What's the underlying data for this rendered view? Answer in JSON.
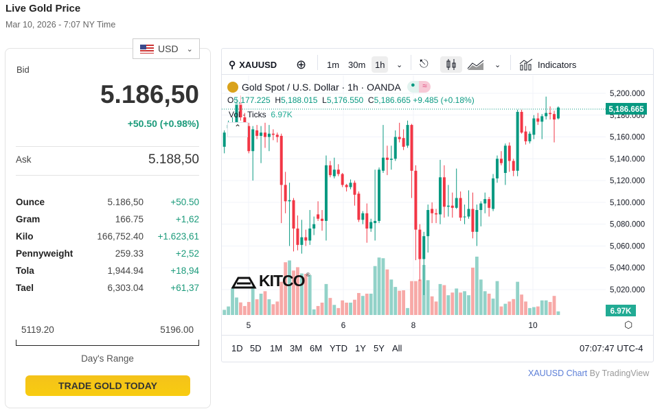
{
  "header": {
    "title": "Live Gold Price",
    "subtitle": "Mar 10, 2026 - 7:07 NY Time"
  },
  "currency": {
    "selected": "USD"
  },
  "quote": {
    "bid_label": "Bid",
    "bid": "5.186,50",
    "change": "+50.50 (+0.98%)",
    "ask_label": "Ask",
    "ask": "5.188,50"
  },
  "units": [
    {
      "name": "Ounce",
      "price": "5.186,50",
      "change": "+50.50"
    },
    {
      "name": "Gram",
      "price": "166.75",
      "change": "+1,62"
    },
    {
      "name": "Kilo",
      "price": "166,752.40",
      "change": "+1.623,61"
    },
    {
      "name": "Pennyweight",
      "price": "259.33",
      "change": "+2,52"
    },
    {
      "name": "Tola",
      "price": "1,944.94",
      "change": "+18,94"
    },
    {
      "name": "Tael",
      "price": "6,303.04",
      "change": "+61,37"
    }
  ],
  "range": {
    "low": "5119.20",
    "high": "5196.00",
    "label": "Day's Range"
  },
  "cta": "TRADE GOLD TODAY",
  "toolbar": {
    "symbol": "XAUUSD",
    "intervals": [
      "1m",
      "30m",
      "1h"
    ],
    "active_interval": "1h",
    "indicators": "Indicators"
  },
  "legend": {
    "title": "Gold Spot / U.S. Dollar · 1h · OANDA",
    "o": "5,177.225",
    "h": "5,188.015",
    "l": "5,176.550",
    "c": "5,186.665",
    "chg": "+9.485 (+0.18%)",
    "vol_label": "Vol · Ticks",
    "vol_value": "6.97K"
  },
  "ranges": [
    "1D",
    "5D",
    "1M",
    "3M",
    "6M",
    "YTD",
    "1Y",
    "5Y",
    "All"
  ],
  "clock": "07:07:47 UTC-4",
  "attribution": {
    "link": "XAUUSD Chart",
    "by": "By TradingView"
  },
  "logo": "KITCO",
  "colors": {
    "up": "#089981",
    "down": "#f23645",
    "up_vol": "#92d2c8",
    "down_vol": "#f7a9a7",
    "accent": "#1a9a7a"
  },
  "chart_data": {
    "type": "candlestick",
    "price_ticks": [
      "5,200.000",
      "5,180.000",
      "5,160.000",
      "5,140.000",
      "5,120.000",
      "5,100.000",
      "5,080.000",
      "5,060.000",
      "5,040.000",
      "5,020.000"
    ],
    "price_tick_values": [
      5200,
      5180,
      5160,
      5140,
      5120,
      5100,
      5080,
      5060,
      5040,
      5020
    ],
    "date_ticks": [
      "5",
      "6",
      "8",
      "10"
    ],
    "last_price": "5,186.665",
    "last_volume": "6.97K",
    "ylim": [
      5010,
      5210
    ],
    "ohlc": [
      [
        5151,
        5166,
        5145,
        5164
      ],
      [
        5168,
        5175,
        5163,
        5171
      ],
      [
        5169,
        5178,
        5166,
        5172
      ],
      [
        5171,
        5196,
        5168,
        5191
      ],
      [
        5191,
        5198,
        5175,
        5178
      ],
      [
        5178,
        5182,
        5168,
        5171
      ],
      [
        5170,
        5173,
        5145,
        5147
      ],
      [
        5147,
        5170,
        5120,
        5167
      ],
      [
        5166,
        5171,
        5158,
        5161
      ],
      [
        5161,
        5170,
        5136,
        5164
      ],
      [
        5164,
        5173,
        5150,
        5160
      ],
      [
        5160,
        5171,
        5147,
        5163
      ],
      [
        5163,
        5167,
        5157,
        5162
      ],
      [
        5162,
        5164,
        5155,
        5160
      ],
      [
        5161,
        5163,
        5081,
        5116
      ],
      [
        5116,
        5128,
        5090,
        5101
      ],
      [
        5101,
        5118,
        5060,
        5102
      ],
      [
        5102,
        5104,
        5055,
        5076
      ],
      [
        5076,
        5088,
        5056,
        5061
      ],
      [
        5061,
        5084,
        5053,
        5068
      ],
      [
        5068,
        5075,
        5060,
        5065
      ],
      [
        5065,
        5093,
        5061,
        5076
      ],
      [
        5076,
        5087,
        5070,
        5080
      ],
      [
        5089,
        5101,
        5083,
        5085
      ],
      [
        5085,
        5093,
        5074,
        5083
      ],
      [
        5083,
        5143,
        5065,
        5134
      ],
      [
        5134,
        5138,
        5123,
        5125
      ],
      [
        5124,
        5141,
        5122,
        5130
      ],
      [
        5130,
        5135,
        5124,
        5126
      ],
      [
        5126,
        5127,
        5114,
        5116
      ],
      [
        5116,
        5117,
        5110,
        5114
      ],
      [
        5114,
        5121,
        5112,
        5118
      ],
      [
        5118,
        5120,
        5097,
        5107
      ],
      [
        5108,
        5110,
        5082,
        5084
      ],
      [
        5084,
        5092,
        5080,
        5090
      ],
      [
        5090,
        5099,
        5063,
        5076
      ],
      [
        5076,
        5085,
        5073,
        5082
      ],
      [
        5081,
        5130,
        5065,
        5083
      ],
      [
        5083,
        5132,
        5081,
        5130
      ],
      [
        5129,
        5171,
        5127,
        5141
      ],
      [
        5141,
        5152,
        5125,
        5139
      ],
      [
        5139,
        5152,
        5130,
        5140
      ],
      [
        5140,
        5166,
        5138,
        5160
      ],
      [
        5160,
        5173,
        5155,
        5158
      ],
      [
        5159,
        5167,
        5148,
        5151
      ],
      [
        5152,
        5175,
        5150,
        5171
      ],
      [
        5171,
        5172,
        5104,
        5129
      ],
      [
        5129,
        5134,
        5047,
        5075
      ],
      [
        5075,
        5080,
        5028,
        5048
      ],
      [
        5048,
        5073,
        5015,
        5069
      ],
      [
        5069,
        5098,
        5054,
        5093
      ],
      [
        5094,
        5100,
        5081,
        5090
      ],
      [
        5090,
        5094,
        5081,
        5089
      ],
      [
        5089,
        5139,
        5080,
        5123
      ],
      [
        5123,
        5134,
        5086,
        5096
      ],
      [
        5096,
        5116,
        5087,
        5097
      ],
      [
        5097,
        5109,
        5086,
        5095
      ],
      [
        5095,
        5131,
        5094,
        5104
      ],
      [
        5104,
        5110,
        5083,
        5086
      ],
      [
        5087,
        5098,
        5080,
        5087
      ],
      [
        5087,
        5111,
        5085,
        5094
      ],
      [
        5094,
        5109,
        5067,
        5073
      ],
      [
        5073,
        5098,
        5060,
        5093
      ],
      [
        5093,
        5101,
        5078,
        5099
      ],
      [
        5099,
        5109,
        5090,
        5103
      ],
      [
        5103,
        5105,
        5087,
        5095
      ],
      [
        5094,
        5126,
        5092,
        5122
      ],
      [
        5122,
        5143,
        5118,
        5140
      ],
      [
        5140,
        5147,
        5134,
        5136
      ],
      [
        5127,
        5154,
        5116,
        5152
      ],
      [
        5152,
        5155,
        5128,
        5138
      ],
      [
        5138,
        5140,
        5124,
        5129
      ],
      [
        5129,
        5185,
        5124,
        5183
      ],
      [
        5183,
        5185,
        5163,
        5164
      ],
      [
        5165,
        5170,
        5153,
        5156
      ],
      [
        5156,
        5165,
        5154,
        5163
      ],
      [
        5162,
        5180,
        5158,
        5177
      ],
      [
        5177,
        5182,
        5171,
        5174
      ],
      [
        5174,
        5181,
        5158,
        5179
      ],
      [
        5179,
        5197,
        5176,
        5182
      ],
      [
        5182,
        5188,
        5176,
        5181
      ],
      [
        5181,
        5184,
        5155,
        5176
      ],
      [
        5177,
        5188,
        5176,
        5187
      ]
    ],
    "volume_relative": [
      23,
      38,
      118,
      78,
      56,
      40,
      58,
      128,
      70,
      95,
      106,
      70,
      48,
      60,
      148,
      235,
      243,
      198,
      213,
      185,
      183,
      178,
      25,
      40,
      55,
      138,
      76,
      45,
      31,
      65,
      55,
      55,
      68,
      98,
      85,
      95,
      95,
      218,
      256,
      253,
      203,
      158,
      125,
      108,
      110,
      31,
      151,
      151,
      158,
      223,
      155,
      83,
      60,
      138,
      133,
      88,
      100,
      118,
      100,
      106,
      88,
      211,
      260,
      158,
      106,
      95,
      73,
      151,
      38,
      50,
      60,
      71,
      148,
      91,
      60,
      31,
      35,
      38,
      65,
      65,
      58,
      85,
      16
    ]
  }
}
